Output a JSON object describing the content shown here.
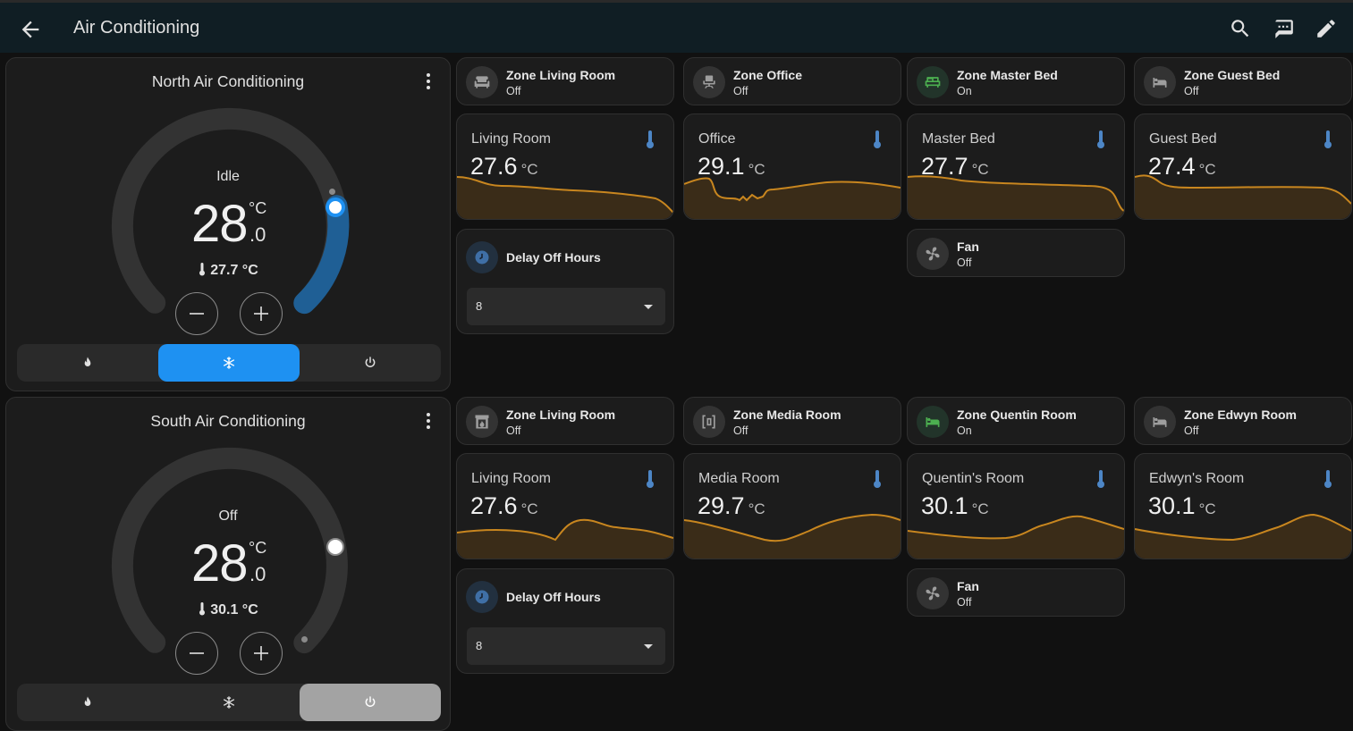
{
  "header": {
    "title": "Air Conditioning"
  },
  "thermostats": [
    {
      "name": "North Air Conditioning",
      "state": "Idle",
      "target_int": "28",
      "target_unit": "°C",
      "target_dec": ".0",
      "current": "27.7 °C",
      "active_mode": "cool",
      "setpoint_fraction": 0.78
    },
    {
      "name": "South Air Conditioning",
      "state": "Off",
      "target_int": "28",
      "target_unit": "°C",
      "target_dec": ".0",
      "current": "30.1 °C",
      "active_mode": "off",
      "setpoint_fraction": 0.78
    }
  ],
  "zones_north": [
    {
      "name": "Zone Living Room",
      "state": "Off",
      "icon": "sofa-icon"
    },
    {
      "name": "Zone Office",
      "state": "Off",
      "icon": "office-chair-icon"
    },
    {
      "name": "Zone Master Bed",
      "state": "On",
      "icon": "bed-double-icon"
    },
    {
      "name": "Zone Guest Bed",
      "state": "Off",
      "icon": "bed-single-icon"
    }
  ],
  "sensors_north": [
    {
      "name": "Living Room",
      "value": "27.6",
      "unit": "°C"
    },
    {
      "name": "Office",
      "value": "29.1",
      "unit": "°C"
    },
    {
      "name": "Master Bed",
      "value": "27.7",
      "unit": "°C"
    },
    {
      "name": "Guest Bed",
      "value": "27.4",
      "unit": "°C"
    }
  ],
  "zones_south": [
    {
      "name": "Zone Living Room",
      "state": "Off",
      "icon": "fireplace-icon"
    },
    {
      "name": "Zone Media Room",
      "state": "Off",
      "icon": "media-room-icon"
    },
    {
      "name": "Zone Quentin Room",
      "state": "On",
      "icon": "bed-icon"
    },
    {
      "name": "Zone Edwyn Room",
      "state": "Off",
      "icon": "bed-icon"
    }
  ],
  "sensors_south": [
    {
      "name": "Living Room",
      "value": "27.6",
      "unit": "°C"
    },
    {
      "name": "Media Room",
      "value": "29.7",
      "unit": "°C"
    },
    {
      "name": "Quentin's Room",
      "value": "30.1",
      "unit": "°C"
    },
    {
      "name": "Edwyn's Room",
      "value": "30.1",
      "unit": "°C"
    }
  ],
  "delay_north": {
    "label": "Delay Off Hours",
    "value": "8"
  },
  "delay_south": {
    "label": "Delay Off Hours",
    "value": "8"
  },
  "fan_north": {
    "name": "Fan",
    "state": "Off"
  },
  "fan_south": {
    "name": "Fan",
    "state": "Off"
  },
  "colors": {
    "accent_blue": "#1e91f2",
    "graph_line": "#c8861f",
    "on_green": "#4caf50",
    "off_grey": "#a3a3a3"
  }
}
